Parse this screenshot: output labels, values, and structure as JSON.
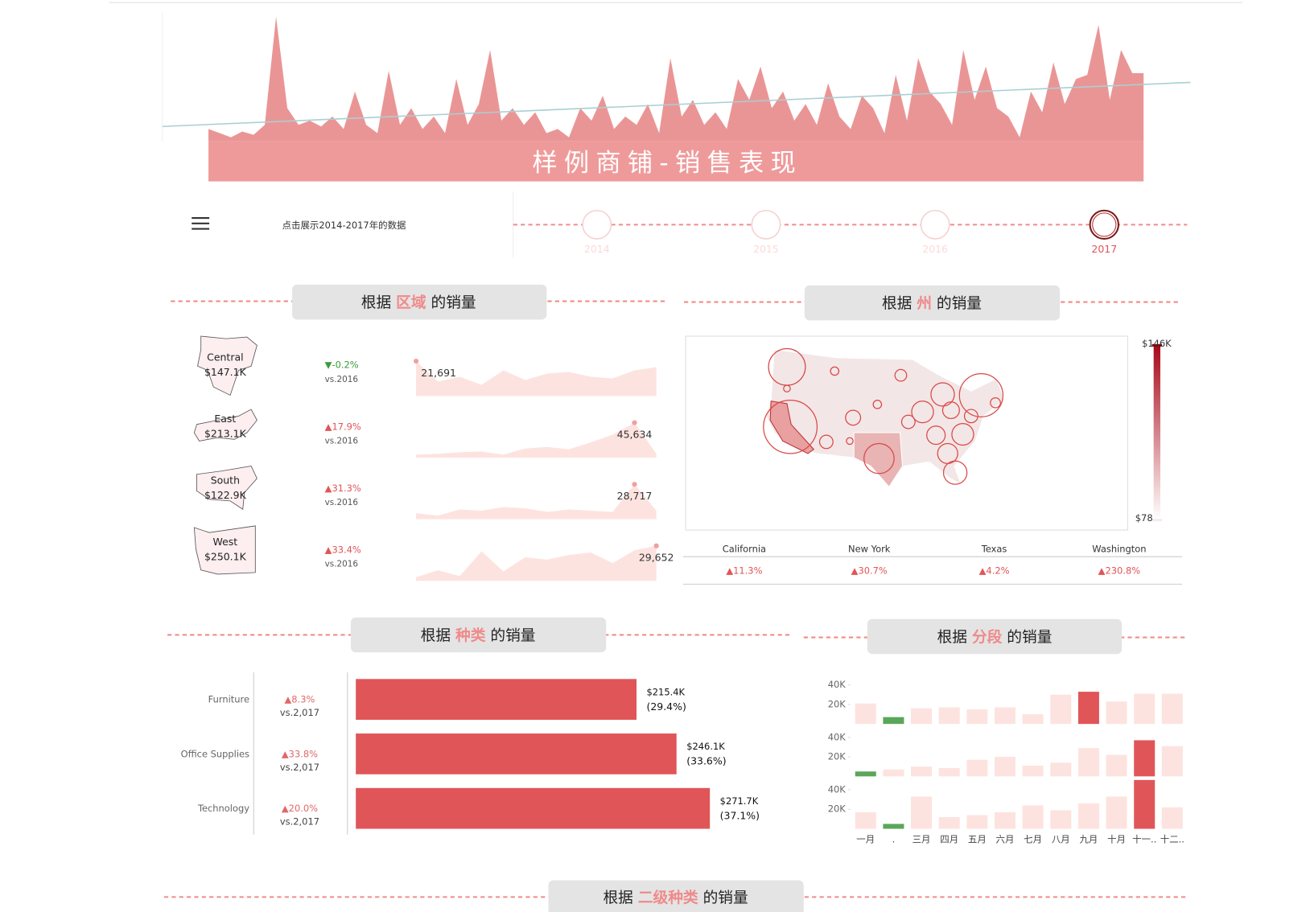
{
  "header": {
    "title": "样例商铺-销售表现",
    "color": "#e88a8a",
    "trend_color": "#a9cfd3",
    "sales": [
      15,
      10,
      5,
      12,
      8,
      20,
      150,
      40,
      20,
      25,
      18,
      30,
      15,
      60,
      20,
      10,
      85,
      20,
      40,
      15,
      30,
      10,
      75,
      20,
      45,
      110,
      25,
      40,
      20,
      35,
      10,
      15,
      5,
      40,
      25,
      55,
      15,
      30,
      20,
      45,
      10,
      100,
      30,
      50,
      20,
      35,
      15,
      75,
      50,
      90,
      40,
      60,
      25,
      45,
      20,
      70,
      30,
      15,
      55,
      40,
      10,
      80,
      25,
      100,
      60,
      45,
      20,
      110,
      50,
      90,
      40,
      30,
      5,
      60,
      35,
      95,
      45,
      75,
      80,
      140,
      50,
      110,
      82,
      82
    ],
    "trend": [
      18,
      71
    ]
  },
  "timeline": {
    "hint": "点击展示2014-2017年的数据",
    "years": [
      "2014",
      "2015",
      "2016",
      "2017"
    ],
    "selected": 3
  },
  "regions": {
    "title": [
      "根据",
      "区域",
      "的销量"
    ],
    "area_color": "#fde3df",
    "items": [
      {
        "name": "Central",
        "total": "$147.1K",
        "change": "▼-0.2%",
        "change_color": "#3a9a3a",
        "compare": "vs.2016",
        "values": [
          21691,
          9000,
          12000,
          7000,
          16000,
          10000,
          14000,
          15000,
          12000,
          11000,
          16000,
          18000
        ],
        "value_labels": [
          "21,691",
          null,
          null,
          null,
          null,
          null,
          null,
          null,
          null,
          null,
          null,
          null
        ]
      },
      {
        "name": "East",
        "total": "$213.1K",
        "change": "▲17.9%",
        "change_color": "#e05558",
        "compare": "vs.2016",
        "values": [
          4000,
          5000,
          7000,
          8000,
          4000,
          12000,
          14000,
          11000,
          20000,
          30000,
          45634,
          5000
        ],
        "value_labels": [
          null,
          null,
          null,
          null,
          null,
          null,
          null,
          null,
          null,
          null,
          "45,634",
          null
        ]
      },
      {
        "name": "South",
        "total": "$122.9K",
        "change": "▲31.3%",
        "change_color": "#e05558",
        "compare": "vs.2016",
        "values": [
          5000,
          3000,
          8000,
          7000,
          10000,
          9000,
          6000,
          8000,
          7000,
          6000,
          28717,
          7000
        ],
        "value_labels": [
          null,
          null,
          null,
          null,
          null,
          null,
          null,
          null,
          null,
          null,
          "28,717",
          null
        ]
      },
      {
        "name": "West",
        "total": "$250.1K",
        "change": "▲33.4%",
        "change_color": "#e05558",
        "compare": "vs.2016",
        "values": [
          3000,
          9000,
          4000,
          25000,
          8000,
          20000,
          18000,
          22000,
          24000,
          15000,
          26000,
          29652
        ],
        "value_labels": [
          null,
          null,
          null,
          null,
          null,
          null,
          null,
          null,
          null,
          null,
          null,
          "29,652"
        ]
      }
    ]
  },
  "states": {
    "title": [
      "根据",
      "州",
      "的销量"
    ],
    "legend_lim": [
      78,
      146000
    ],
    "legend_ticks": [
      {
        "value": 78,
        "label": "$78"
      },
      {
        "value": 146000,
        "label": "$146K"
      }
    ],
    "items": [
      {
        "name": "California",
        "change": "▲11.3%"
      },
      {
        "name": "New York",
        "change": "▲30.7%"
      },
      {
        "name": "Texas",
        "change": "▲4.2%"
      },
      {
        "name": "Washington",
        "change": "▲230.8%"
      }
    ]
  },
  "categories": {
    "title": [
      "根据",
      "种类",
      "的销量"
    ],
    "xlim": [
      0,
      300000
    ],
    "color": "#e05558",
    "items": [
      {
        "name": "Furniture",
        "change": "▲8.3%",
        "compare": "vs.2,017",
        "value": 215400,
        "value_label": "$215.4K",
        "share": "(29.4%)"
      },
      {
        "name": "Office Supplies",
        "change": "▲33.8%",
        "compare": "vs.2,017",
        "value": 246100,
        "value_label": "$246.1K",
        "share": "(33.6%)"
      },
      {
        "name": "Technology",
        "change": "▲20.0%",
        "compare": "vs.2,017",
        "value": 271700,
        "value_label": "$271.7K",
        "share": "(37.1%)"
      }
    ]
  },
  "segments": {
    "title": [
      "根据",
      "分段",
      "的销量"
    ],
    "months": [
      "一月",
      ".",
      "三月",
      "四月",
      "五月",
      "六月",
      "七月",
      "八月",
      "九月",
      "十月",
      "十一..",
      "十二.."
    ],
    "ylim": [
      0,
      52000
    ],
    "yticks": [
      {
        "value": 20000,
        "label": "20K"
      },
      {
        "value": 40000,
        "label": "40K"
      }
    ],
    "series": [
      {
        "values": [
          21000,
          7000,
          16000,
          17000,
          15000,
          17000,
          10000,
          30000,
          33000,
          23000,
          31000,
          31000
        ],
        "colors": [
          "#fde3df",
          "#5aa65a",
          "#fde3df",
          "#fde3df",
          "#fde3df",
          "#fde3df",
          "#fde3df",
          "#fde3df",
          "#e05558",
          "#fde3df",
          "#fde3df",
          "#fde3df"
        ]
      },
      {
        "values": [
          5000,
          7000,
          10000,
          8500,
          17000,
          20000,
          11000,
          14000,
          29000,
          22000,
          37000,
          31000
        ],
        "colors": [
          "#5aa65a",
          "#fde3df",
          "#fde3df",
          "#fde3df",
          "#fde3df",
          "#fde3df",
          "#fde3df",
          "#fde3df",
          "#fde3df",
          "#fde3df",
          "#e05558",
          "#fde3df"
        ]
      },
      {
        "values": [
          17000,
          5000,
          33000,
          12000,
          14000,
          17000,
          24000,
          19000,
          26000,
          33000,
          50000,
          22000
        ],
        "colors": [
          "#fde3df",
          "#5aa65a",
          "#fde3df",
          "#fde3df",
          "#fde3df",
          "#fde3df",
          "#fde3df",
          "#fde3df",
          "#fde3df",
          "#fde3df",
          "#e05558",
          "#fde3df"
        ]
      }
    ]
  },
  "subcategories": {
    "title": [
      "根据",
      "二级种类",
      "的销量"
    ]
  }
}
